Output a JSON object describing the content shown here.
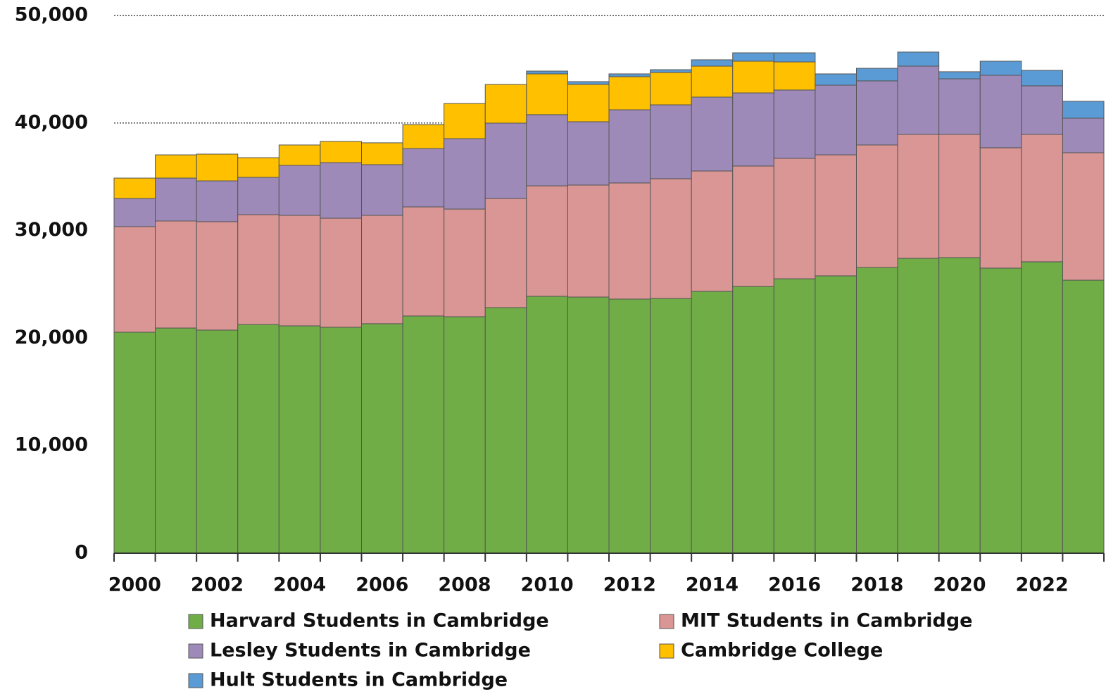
{
  "chart_data": {
    "type": "stacked_bar",
    "categories": [
      "2000",
      null,
      "2002",
      null,
      "2004",
      null,
      "2006",
      null,
      "2008",
      null,
      "2010",
      null,
      "2012",
      null,
      "2014",
      null,
      "2016",
      null,
      "2018",
      null,
      "2020",
      null,
      "2022",
      null
    ],
    "series": [
      {
        "name": "Harvard Students in Cambridge",
        "color": "#70ad47",
        "values": [
          20550,
          20940,
          20750,
          21270,
          21140,
          21010,
          21340,
          22060,
          21990,
          22840,
          23890,
          23820,
          23630,
          23690,
          24350,
          24810,
          25520,
          25790,
          26570,
          27420,
          27490,
          26510,
          27100,
          25390
        ]
      },
      {
        "name": "MIT Students in Cambridge",
        "color": "#da9694",
        "values": [
          9820,
          9950,
          10080,
          10210,
          10280,
          10140,
          10080,
          10140,
          10010,
          10150,
          10270,
          10410,
          10800,
          11130,
          11190,
          11190,
          11200,
          11250,
          11390,
          11520,
          11450,
          11190,
          11840,
          11850
        ]
      },
      {
        "name": "Lesley Students in Cambridge",
        "color": "#9e8ab9",
        "values": [
          2620,
          3990,
          3790,
          3470,
          4640,
          5170,
          4710,
          5430,
          6550,
          7000,
          6620,
          5890,
          6800,
          6870,
          6870,
          6800,
          6350,
          6480,
          5960,
          6350,
          5170,
          6740,
          4520,
          3210
        ]
      },
      {
        "name": "Cambridge College",
        "color": "#ffc000",
        "values": [
          1890,
          2160,
          2490,
          1830,
          1900,
          1970,
          2030,
          2230,
          3270,
          3600,
          3790,
          3470,
          3080,
          3010,
          2880,
          2950,
          2610,
          0,
          0,
          0,
          0,
          0,
          0,
          0
        ]
      },
      {
        "name": "Hult Students in Cambridge",
        "color": "#5b9bd5",
        "values": [
          0,
          0,
          0,
          0,
          0,
          0,
          0,
          0,
          0,
          0,
          260,
          260,
          260,
          260,
          590,
          780,
          850,
          1050,
          1170,
          1310,
          660,
          1310,
          1440,
          1570
        ]
      }
    ],
    "ylim": [
      0,
      50000
    ],
    "yticks": [
      0,
      {
        "value": 10000,
        "label": "10,000"
      },
      {
        "value": 20000,
        "label": "20,000"
      },
      {
        "value": 30000,
        "label": "30,000"
      },
      {
        "value": 40000,
        "label": "40,000"
      },
      {
        "value": 50000,
        "label": "50,000"
      }
    ],
    "grid": true
  }
}
